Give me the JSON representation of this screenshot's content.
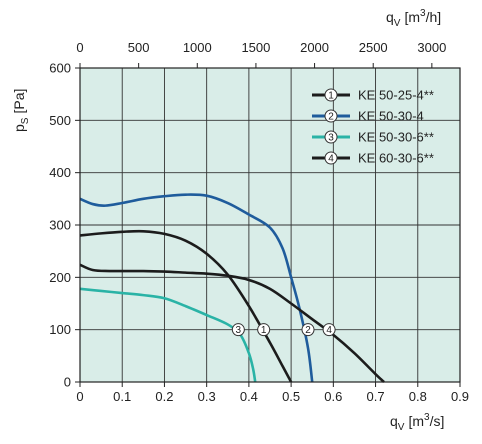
{
  "chart_data": {
    "type": "line",
    "background_color": "#d9ede8",
    "grid": true,
    "legend_placement": "top-right",
    "x_bottom": {
      "label_main": "q",
      "label_sub": "V",
      "label_unit": "[m",
      "label_sup": "3",
      "label_end": "/s]",
      "range": [
        0,
        0.9
      ],
      "ticks": [
        0,
        0.1,
        0.2,
        0.3,
        0.4,
        0.5,
        0.6,
        0.7,
        0.8,
        0.9
      ],
      "tick_labels": [
        "0",
        "0.1",
        "0.2",
        "0.3",
        "0.4",
        "0.5",
        "0.6",
        "0.7",
        "0.8",
        "0.9"
      ]
    },
    "x_top": {
      "label_main": "q",
      "label_sub": "V",
      "label_unit": "[m",
      "label_sup": "3",
      "label_end": "/h]",
      "range": [
        0,
        3240
      ],
      "ticks": [
        0,
        500,
        1000,
        1500,
        2000,
        2500,
        3000
      ],
      "tick_labels": [
        "0",
        "500",
        "1000",
        "1500",
        "2000",
        "2500",
        "3000"
      ]
    },
    "y": {
      "label_main": "p",
      "label_sub": "S",
      "label_unit": "[Pa]",
      "range": [
        0,
        600
      ],
      "ticks": [
        0,
        100,
        200,
        300,
        400,
        500,
        600
      ],
      "tick_labels": [
        "0",
        "100",
        "200",
        "300",
        "400",
        "500",
        "600"
      ]
    },
    "series": [
      {
        "name": "KE 50-25-4**",
        "marker": "1",
        "color": "#1c1c1c",
        "label_at": [
          0.435,
          100
        ],
        "points": [
          [
            0,
            280
          ],
          [
            0.05,
            284
          ],
          [
            0.1,
            287
          ],
          [
            0.15,
            288
          ],
          [
            0.2,
            283
          ],
          [
            0.25,
            270
          ],
          [
            0.3,
            245
          ],
          [
            0.35,
            205
          ],
          [
            0.4,
            145
          ],
          [
            0.45,
            75
          ],
          [
            0.48,
            30
          ],
          [
            0.5,
            0
          ]
        ]
      },
      {
        "name": "KE 50-30-4",
        "marker": "2",
        "color": "#1f5c9c",
        "label_at": [
          0.54,
          100
        ],
        "points": [
          [
            0,
            350
          ],
          [
            0.03,
            340
          ],
          [
            0.06,
            337
          ],
          [
            0.1,
            342
          ],
          [
            0.15,
            350
          ],
          [
            0.2,
            355
          ],
          [
            0.25,
            358
          ],
          [
            0.3,
            356
          ],
          [
            0.35,
            342
          ],
          [
            0.4,
            320
          ],
          [
            0.45,
            295
          ],
          [
            0.48,
            255
          ],
          [
            0.5,
            200
          ],
          [
            0.52,
            140
          ],
          [
            0.54,
            65
          ],
          [
            0.55,
            0
          ]
        ]
      },
      {
        "name": "KE 50-30-6**",
        "marker": "3",
        "color": "#2ab3a6",
        "label_at": [
          0.375,
          100
        ],
        "points": [
          [
            0,
            178
          ],
          [
            0.05,
            174
          ],
          [
            0.1,
            170
          ],
          [
            0.15,
            166
          ],
          [
            0.2,
            160
          ],
          [
            0.25,
            145
          ],
          [
            0.3,
            128
          ],
          [
            0.35,
            110
          ],
          [
            0.38,
            90
          ],
          [
            0.4,
            55
          ],
          [
            0.41,
            25
          ],
          [
            0.415,
            0
          ]
        ]
      },
      {
        "name": "KE 60-30-6**",
        "marker": "4",
        "color": "#1c1c1c",
        "label_at": [
          0.59,
          100
        ],
        "points": [
          [
            0,
            224
          ],
          [
            0.03,
            214
          ],
          [
            0.07,
            212
          ],
          [
            0.15,
            212
          ],
          [
            0.2,
            211
          ],
          [
            0.25,
            209
          ],
          [
            0.3,
            207
          ],
          [
            0.35,
            203
          ],
          [
            0.4,
            195
          ],
          [
            0.45,
            178
          ],
          [
            0.5,
            150
          ],
          [
            0.55,
            120
          ],
          [
            0.6,
            90
          ],
          [
            0.65,
            55
          ],
          [
            0.7,
            15
          ],
          [
            0.72,
            0
          ]
        ]
      }
    ]
  }
}
